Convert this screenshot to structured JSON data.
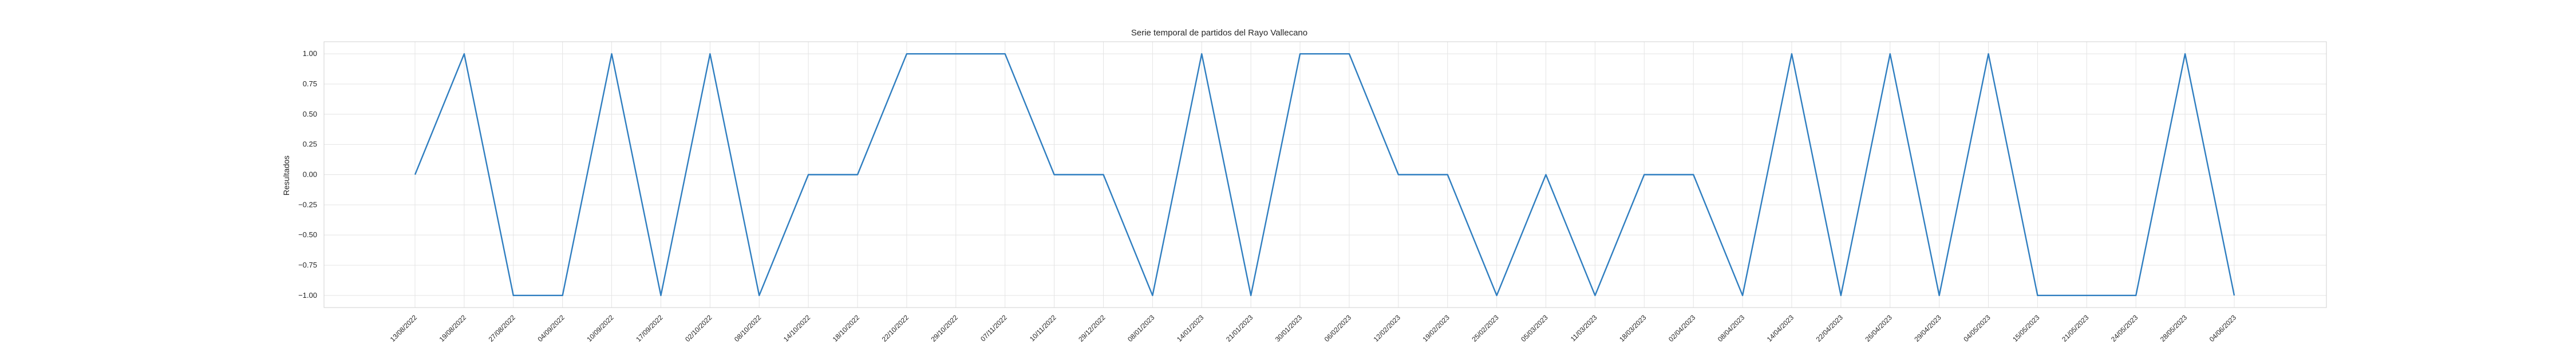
{
  "chart_data": {
    "type": "line",
    "title": "Serie temporal de partidos del Rayo Vallecano",
    "xlabel": "",
    "ylabel": "Resultados",
    "ylim": [
      -1.1,
      1.1
    ],
    "yticks": [
      "1.00",
      "0.75",
      "0.50",
      "0.25",
      "0.00",
      "−0.25",
      "−0.50",
      "−0.75",
      "−1.00"
    ],
    "ytick_values": [
      1.0,
      0.75,
      0.5,
      0.25,
      0.0,
      -0.25,
      -0.5,
      -0.75,
      -1.0
    ],
    "grid": true,
    "colors": {
      "series": "#2f7ec0",
      "grid": "#e4e4e4",
      "text": "#262626"
    },
    "x": [
      "13/08/2022",
      "19/08/2022",
      "27/08/2022",
      "04/09/2022",
      "10/09/2022",
      "17/09/2022",
      "02/10/2022",
      "08/10/2022",
      "14/10/2022",
      "18/10/2022",
      "22/10/2022",
      "29/10/2022",
      "07/11/2022",
      "10/11/2022",
      "29/12/2022",
      "08/01/2023",
      "14/01/2023",
      "21/01/2023",
      "30/01/2023",
      "06/02/2023",
      "12/02/2023",
      "19/02/2023",
      "25/02/2023",
      "05/03/2023",
      "11/03/2023",
      "18/03/2023",
      "02/04/2023",
      "08/04/2023",
      "14/04/2023",
      "22/04/2023",
      "26/04/2023",
      "29/04/2023",
      "04/05/2023",
      "15/05/2023",
      "21/05/2023",
      "24/05/2023",
      "28/05/2023",
      "04/06/2023"
    ],
    "series": [
      {
        "values": [
          0,
          1,
          -1,
          -1,
          1,
          -1,
          1,
          -1,
          0,
          0,
          1,
          1,
          1,
          0,
          0,
          -1,
          1,
          -1,
          1,
          1,
          0,
          0,
          -1,
          0,
          -1,
          0,
          0,
          -1,
          1,
          -1,
          1,
          -1,
          1,
          -1,
          -1,
          -1,
          1,
          -1
        ]
      }
    ]
  }
}
